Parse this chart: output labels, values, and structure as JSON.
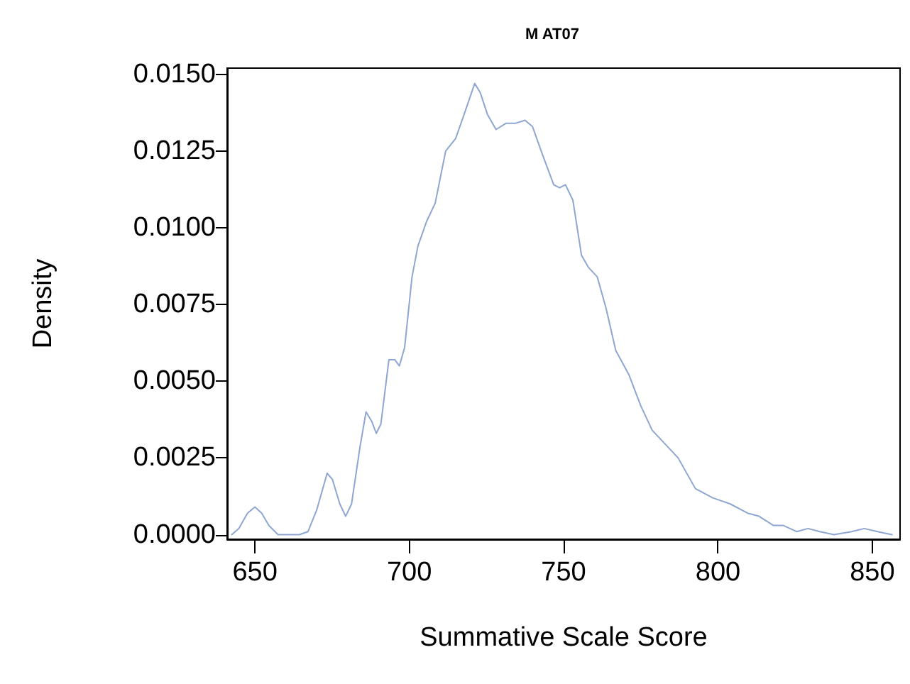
{
  "chart_data": {
    "type": "line",
    "title": "M AT07",
    "xlabel": "Summative Scale Score",
    "ylabel": "Density",
    "xlim": [
      641,
      859
    ],
    "xticks": [
      650,
      700,
      750,
      800,
      850
    ],
    "ylim": [
      -0.00015,
      0.0152
    ],
    "yticks": [
      {
        "value": 0,
        "label": "0.0000"
      },
      {
        "value": 0.0025,
        "label": "0.0025"
      },
      {
        "value": 0.005,
        "label": "0.0050"
      },
      {
        "value": 0.0075,
        "label": "0.0075"
      },
      {
        "value": 0.01,
        "label": "0.0100"
      },
      {
        "value": 0.0125,
        "label": "0.0125"
      },
      {
        "value": 0.015,
        "label": "0.0150"
      }
    ],
    "grid": false,
    "marker": "none",
    "line_style": "solid",
    "series": [
      {
        "color": "#8ea6d2",
        "x": [
          642.5,
          644.8,
          647.6,
          650,
          652.2,
          654.5,
          657.5,
          664.4,
          667.2,
          670,
          673.4,
          675.1,
          677.5,
          679.4,
          681.3,
          684.1,
          686,
          687.8,
          689.3,
          690.8,
          693.4,
          695.3,
          696.8,
          698.5,
          700.9,
          702.8,
          705.6,
          708.4,
          711.8,
          715,
          717.8,
          721.2,
          723,
          725.3,
          728.1,
          731.3,
          734.3,
          737.5,
          739.9,
          743.1,
          746.8,
          748.7,
          750.6,
          753,
          755.8,
          758.1,
          760.9,
          763.7,
          766.9,
          771.2,
          775,
          778.7,
          783.4,
          787.1,
          792.7,
          798.3,
          804,
          809.6,
          813.3,
          818,
          821.2,
          825.5,
          829.2,
          833,
          837.6,
          843.3,
          847.4,
          851.7,
          856.4
        ],
        "values": [
          0,
          0.0002,
          0.0007,
          0.0009,
          0.0007,
          0.0003,
          0,
          0,
          0.0001,
          0.0008,
          0.002,
          0.0018,
          0.001,
          0.0006,
          0.001,
          0.0029,
          0.004,
          0.0037,
          0.0033,
          0.0036,
          0.0057,
          0.0057,
          0.0055,
          0.0061,
          0.0084,
          0.0094,
          0.0102,
          0.0108,
          0.0125,
          0.0129,
          0.0137,
          0.0147,
          0.0144,
          0.0137,
          0.0132,
          0.0134,
          0.0134,
          0.0135,
          0.0133,
          0.0124,
          0.0114,
          0.0113,
          0.0114,
          0.0109,
          0.0091,
          0.0087,
          0.0084,
          0.0074,
          0.006,
          0.0052,
          0.0042,
          0.0034,
          0.0029,
          0.0025,
          0.0015,
          0.0012,
          0.001,
          0.0007,
          0.0006,
          0.0003,
          0.0003,
          0.0001,
          0.0002,
          0.0001,
          0,
          0.0001,
          0.0002,
          0.0001,
          0
        ]
      }
    ]
  }
}
